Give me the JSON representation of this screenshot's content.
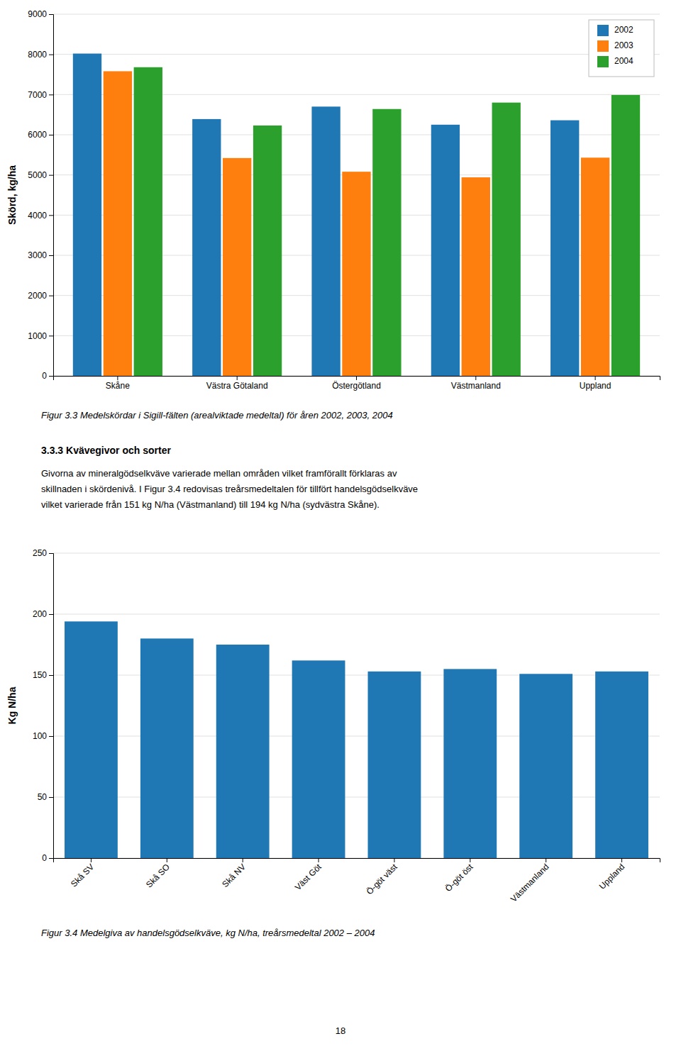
{
  "chart_data": [
    {
      "type": "bar",
      "title": "Figur 3.3  Medelskördar i Sigill-fälten (arealviktade medeltal) för åren 2002, 2003, 2004",
      "ylabel": "Skörd, kg/ha",
      "categories": [
        "Skåne",
        "Västra Götaland",
        "Östergötland",
        "Västmanland",
        "Uppland"
      ],
      "series": [
        {
          "name": "2002",
          "values": [
            8020,
            6390,
            6700,
            6250,
            6360
          ]
        },
        {
          "name": "2003",
          "values": [
            7580,
            5420,
            5080,
            4940,
            5430
          ]
        },
        {
          "name": "2004",
          "values": [
            7680,
            6230,
            6640,
            6800,
            6990
          ]
        }
      ],
      "ylim": [
        0,
        9000
      ],
      "yticks": [
        0,
        1000,
        2000,
        3000,
        4000,
        5000,
        6000,
        7000,
        8000,
        9000
      ],
      "grid": true,
      "legend": "upper right"
    },
    {
      "type": "bar",
      "title": "Figur 3.4  Medelgiva av handelsgödselkväve, kg N/ha, treårsmedeltal 2002 – 2004",
      "ylabel": "Kg N/ha",
      "categories": [
        "Skå SV",
        "Skå SO",
        "Skå NV",
        "Väst Göt",
        "Ö-göt väst",
        "Ö-göt öst",
        "Västmanland",
        "Uppland"
      ],
      "values": [
        194,
        180,
        175,
        162,
        153,
        155,
        151,
        153
      ],
      "ylim": [
        0,
        250
      ],
      "yticks": [
        0,
        50,
        100,
        150,
        200,
        250
      ],
      "grid": true
    }
  ],
  "page": {
    "heading": "3.3.3  Kvävegivor och sorter",
    "body": [
      "Givorna av mineralgödselkväve varierade mellan områden vilket framförallt förklaras av",
      "skillnaden i skördenivå. I Figur 3.4 redovisas treårsmedeltalen för tillfört handelsgödselkväve",
      "vilket varierade från 151 kg N/ha (Västmanland) till 194 kg N/ha (sydvästra Skåne)."
    ],
    "page_number": "18"
  }
}
